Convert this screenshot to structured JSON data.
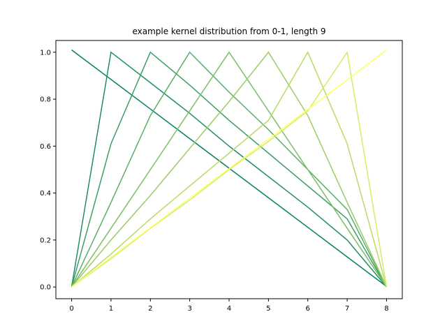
{
  "chart_data": {
    "type": "line",
    "title": "example kernel distribution from 0-1, length 9",
    "xlabel": "",
    "ylabel": "",
    "x": [
      0,
      1,
      2,
      3,
      4,
      5,
      6,
      7,
      8
    ],
    "xlim": [
      -0.4,
      8.4
    ],
    "ylim": [
      -0.05,
      1.05
    ],
    "xticks": [
      "0",
      "1",
      "2",
      "3",
      "4",
      "5",
      "6",
      "7",
      "8"
    ],
    "yticks": [
      "0.0",
      "0.2",
      "0.4",
      "0.6",
      "0.8",
      "1.0"
    ],
    "grid": false,
    "legend": "none",
    "colormap": "summer",
    "series": [
      {
        "color": "#008066",
        "values": [
          1.01,
          0.884,
          0.758,
          0.632,
          0.506,
          0.38,
          0.254,
          0.128,
          0.002
        ]
      },
      {
        "color": "#1f8f66",
        "values": [
          0.0,
          1.0,
          0.87,
          0.74,
          0.6,
          0.47,
          0.34,
          0.2,
          0.0
        ]
      },
      {
        "color": "#3d9e66",
        "values": [
          0.0,
          0.61,
          1.0,
          0.86,
          0.71,
          0.57,
          0.43,
          0.29,
          0.0
        ]
      },
      {
        "color": "#5cae66",
        "values": [
          0.0,
          0.36,
          0.73,
          1.0,
          0.83,
          0.67,
          0.5,
          0.33,
          0.0
        ]
      },
      {
        "color": "#7abd66",
        "values": [
          0.0,
          0.25,
          0.5,
          0.75,
          1.0,
          0.75,
          0.5,
          0.25,
          0.0
        ]
      },
      {
        "color": "#99cc66",
        "values": [
          0.0,
          0.2,
          0.39,
          0.59,
          0.79,
          1.0,
          0.73,
          0.36,
          0.0
        ]
      },
      {
        "color": "#b8db66",
        "values": [
          0.0,
          0.14,
          0.29,
          0.43,
          0.57,
          0.71,
          1.0,
          0.61,
          0.0
        ]
      },
      {
        "color": "#d6eb66",
        "values": [
          0.0,
          0.12,
          0.25,
          0.37,
          0.5,
          0.62,
          0.75,
          1.0,
          0.0
        ]
      },
      {
        "color": "#ffff66",
        "values": [
          0.0,
          0.126,
          0.252,
          0.378,
          0.504,
          0.63,
          0.756,
          0.882,
          1.01
        ]
      }
    ]
  }
}
